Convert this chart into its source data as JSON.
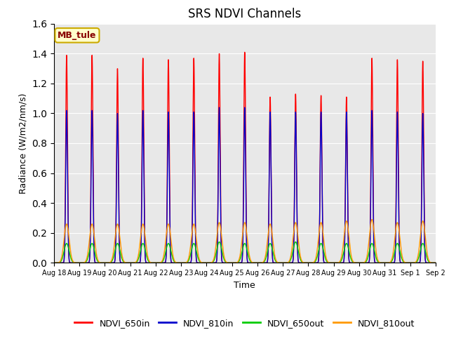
{
  "title": "SRS NDVI Channels",
  "xlabel": "Time",
  "ylabel": "Radiance (W/m2/nm/s)",
  "annotation": "MB_tule",
  "annotation_color": "#880000",
  "annotation_bg": "#ffffcc",
  "annotation_border": "#ccaa00",
  "ylim": [
    0,
    1.6
  ],
  "yticks": [
    0.0,
    0.2,
    0.4,
    0.6,
    0.8,
    1.0,
    1.2,
    1.4,
    1.6
  ],
  "legend_labels": [
    "NDVI_650in",
    "NDVI_810in",
    "NDVI_650out",
    "NDVI_810out"
  ],
  "legend_colors": [
    "#ff0000",
    "#0000cc",
    "#00cc00",
    "#ff9900"
  ],
  "bg_color": "#e8e8e8",
  "n_cycles": 15,
  "start_day": 18,
  "peaks_650in": [
    1.39,
    1.39,
    1.3,
    1.37,
    1.36,
    1.37,
    1.4,
    1.41,
    1.11,
    1.13,
    1.12,
    1.11,
    1.37,
    1.36,
    1.35
  ],
  "peaks_810in": [
    1.02,
    1.02,
    1.0,
    1.02,
    1.01,
    1.01,
    1.04,
    1.04,
    1.01,
    1.01,
    1.01,
    1.01,
    1.02,
    1.01,
    1.0
  ],
  "peaks_650out": [
    0.13,
    0.13,
    0.13,
    0.13,
    0.13,
    0.13,
    0.14,
    0.13,
    0.13,
    0.14,
    0.13,
    0.13,
    0.13,
    0.13,
    0.13
  ],
  "peaks_810out": [
    0.26,
    0.26,
    0.26,
    0.26,
    0.26,
    0.26,
    0.27,
    0.27,
    0.26,
    0.27,
    0.27,
    0.28,
    0.29,
    0.27,
    0.28
  ],
  "sigma_in": 0.035,
  "sigma_out": 0.1,
  "date_labels": [
    "Aug 18",
    "Aug 19",
    "Aug 20",
    "Aug 21",
    "Aug 22",
    "Aug 23",
    "Aug 24",
    "Aug 25",
    "Aug 26",
    "Aug 27",
    "Aug 28",
    "Aug 29",
    "Aug 30",
    "Aug 31",
    "Sep 1",
    "Sep 2"
  ]
}
